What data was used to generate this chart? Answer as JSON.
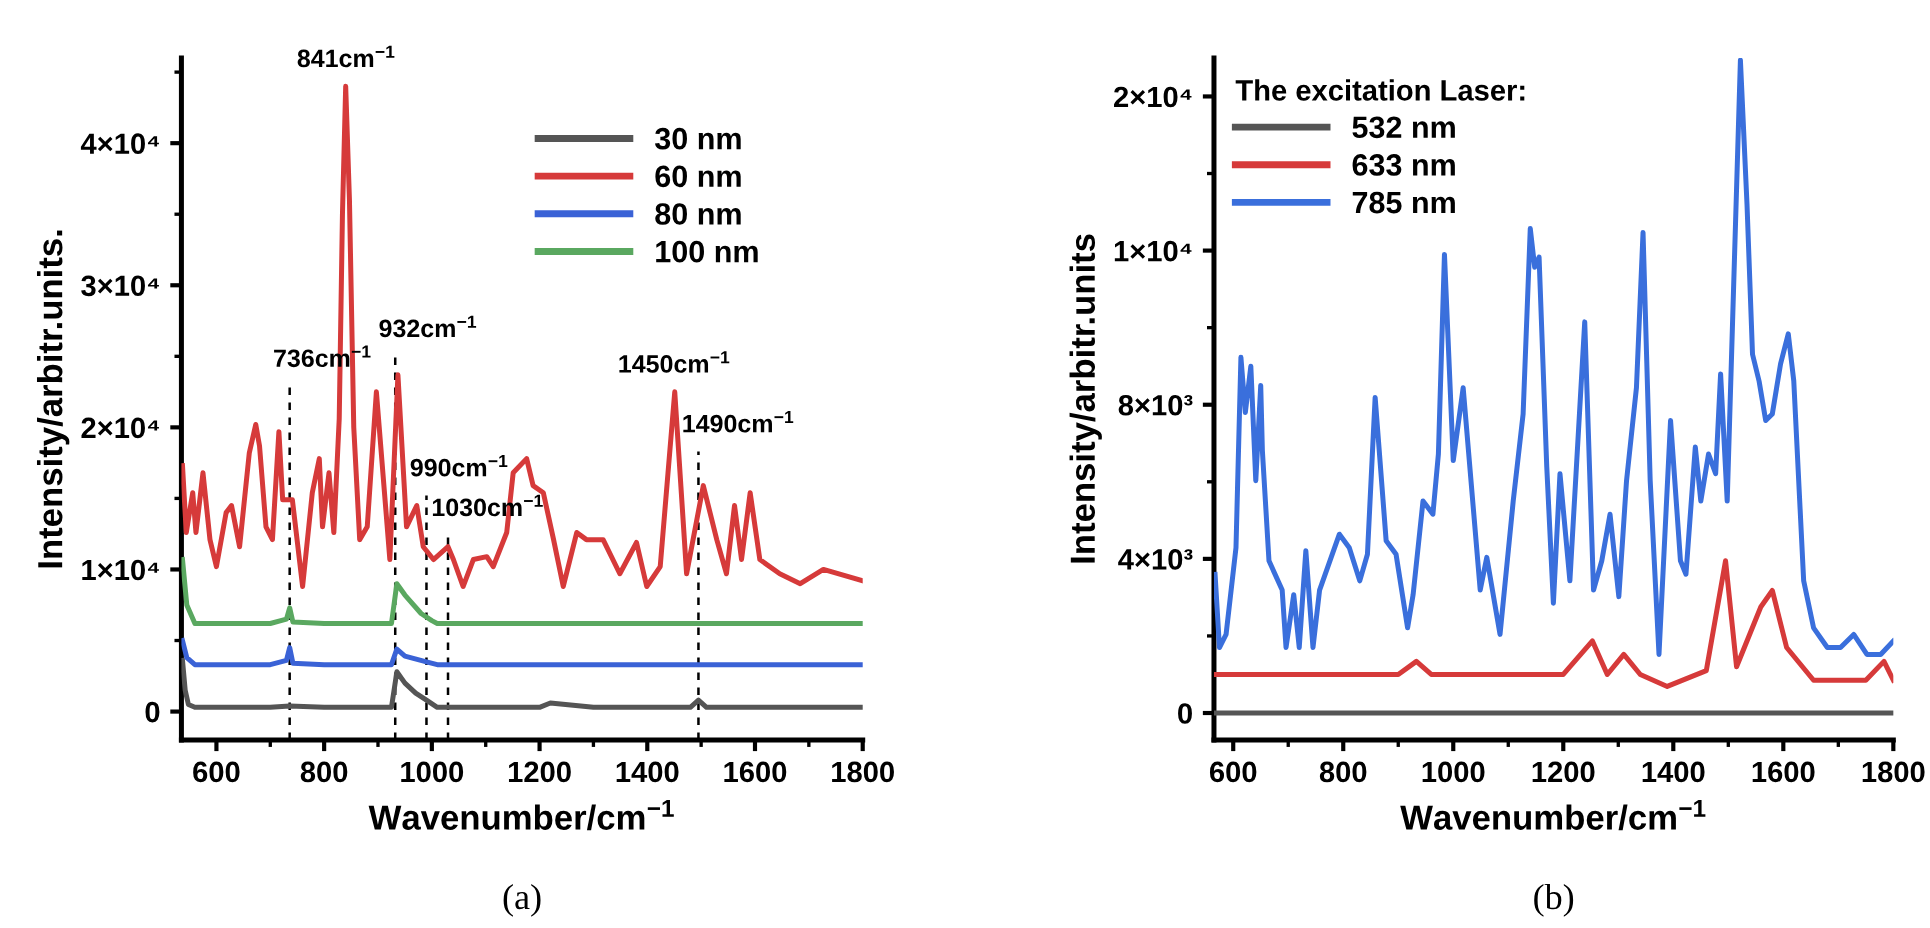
{
  "chart_data": [
    {
      "type": "line",
      "xlabel": "Wavenumber/cm$^{−1}$",
      "ylabel": "Intensity/arbitr.units.",
      "xlim": [
        535,
        1800
      ],
      "ylim": [
        -2000,
        46000
      ],
      "xticks": [
        600,
        800,
        1000,
        1200,
        1400,
        1600,
        1800
      ],
      "yticks": [
        0,
        {
          "value": 10000,
          "label": "1×10⁴"
        },
        {
          "value": 20000,
          "label": "2×10⁴"
        },
        {
          "value": 30000,
          "label": "3×10⁴"
        },
        {
          "value": 40000,
          "label": "4×10⁴"
        }
      ],
      "grid": false,
      "legend": "top right",
      "line_style": "solid",
      "marker": "none",
      "series": [
        {
          "name": "30 nm",
          "color": "#555555",
          "x": [
            537,
            542,
            548,
            560,
            600,
            700,
            736,
            800,
            900,
            925,
            935,
            950,
            970,
            990,
            1010,
            1100,
            1200,
            1220,
            1300,
            1400,
            1480,
            1495,
            1510,
            1600,
            1700,
            1800
          ],
          "values": [
            3600,
            1500,
            500,
            300,
            300,
            300,
            400,
            300,
            300,
            300,
            2800,
            2000,
            1300,
            800,
            300,
            300,
            300,
            600,
            300,
            300,
            300,
            800,
            300,
            300,
            300,
            300
          ]
        },
        {
          "name": "60 nm",
          "color": "#d63a3a",
          "x": [
            537,
            544,
            556,
            562,
            575,
            588,
            600,
            618,
            628,
            643,
            661,
            673,
            680,
            692,
            704,
            716,
            723,
            741,
            760,
            778,
            791,
            797,
            809,
            818,
            828,
            834,
            840,
            847,
            855,
            866,
            880,
            897,
            922,
            937,
            953,
            972,
            984,
            1003,
            1030,
            1040,
            1058,
            1077,
            1102,
            1114,
            1139,
            1151,
            1176,
            1188,
            1207,
            1226,
            1244,
            1269,
            1287,
            1318,
            1349,
            1380,
            1399,
            1424,
            1451,
            1473,
            1504,
            1529,
            1547,
            1562,
            1575,
            1591,
            1609,
            1646,
            1684,
            1727,
            1800
          ],
          "values": [
            17300,
            12600,
            15400,
            12600,
            16800,
            12100,
            10200,
            14000,
            14500,
            11600,
            18200,
            20200,
            18700,
            13000,
            12100,
            19700,
            14900,
            14900,
            8800,
            15400,
            17800,
            13000,
            16800,
            12600,
            20600,
            35000,
            44000,
            36000,
            20000,
            12100,
            13000,
            22500,
            10700,
            23700,
            13000,
            14500,
            11600,
            10700,
            11600,
            10700,
            8800,
            10700,
            10900,
            10200,
            12600,
            16800,
            17800,
            15900,
            15400,
            12100,
            8800,
            12600,
            12100,
            12100,
            9700,
            11900,
            8800,
            10200,
            22500,
            9700,
            15900,
            12100,
            9700,
            14500,
            10700,
            15400,
            10700,
            9700,
            9000,
            10000,
            9200
          ]
        },
        {
          "name": "80 nm",
          "color": "#3a62d6",
          "x": [
            537,
            545,
            560,
            600,
            700,
            730,
            736,
            742,
            800,
            900,
            925,
            935,
            950,
            990,
            1010,
            1100,
            1200,
            1300,
            1400,
            1500,
            1600,
            1700,
            1800
          ],
          "values": [
            5000,
            3800,
            3300,
            3300,
            3300,
            3600,
            4500,
            3400,
            3300,
            3300,
            3300,
            4400,
            3900,
            3500,
            3300,
            3300,
            3300,
            3300,
            3300,
            3300,
            3300,
            3300,
            3300
          ]
        },
        {
          "name": "100 nm",
          "color": "#5aa860",
          "x": [
            537,
            545,
            560,
            600,
            700,
            730,
            736,
            742,
            800,
            900,
            925,
            935,
            950,
            980,
            1000,
            1010,
            1100,
            1200,
            1300,
            1400,
            1500,
            1600,
            1700,
            1800
          ],
          "values": [
            10700,
            7500,
            6200,
            6200,
            6200,
            6500,
            7300,
            6300,
            6200,
            6200,
            6200,
            9000,
            8200,
            6900,
            6400,
            6200,
            6200,
            6200,
            6200,
            6200,
            6200,
            6200,
            6200,
            6200
          ]
        }
      ],
      "ref_lines": [
        {
          "axis": "x",
          "value": 736,
          "color": "#000000",
          "line_style": "dashed"
        },
        {
          "axis": "x",
          "value": 932,
          "color": "#000000",
          "line_style": "dashed"
        },
        {
          "axis": "x",
          "value": 990,
          "color": "#000000",
          "line_style": "dashed"
        },
        {
          "axis": "x",
          "value": 1030,
          "color": "#000000",
          "line_style": "dashed"
        },
        {
          "axis": "x",
          "value": 1495,
          "color": "#000000",
          "line_style": "dashed"
        }
      ],
      "annotations": [
        {
          "text": "841cm$^{−1}$",
          "x": 841,
          "y": 44000
        },
        {
          "text": "736cm$^{−1}$",
          "x": 736,
          "y": 22900
        },
        {
          "text": "932cm$^{−1}$",
          "x": 932,
          "y": 25000
        },
        {
          "text": "990cm$^{−1}$",
          "x": 990,
          "y": 15200
        },
        {
          "text": "1030cm$^{−1}$",
          "x": 1030,
          "y": 12400
        },
        {
          "text": "1450cm$^{−1}$",
          "x": 1450,
          "y": 22500
        },
        {
          "text": "1490cm$^{−1}$",
          "x": 1495,
          "y": 18300
        },
        "(a)"
      ]
    },
    {
      "type": "line",
      "xlabel": "Wavenumber/cm$^{−1}$",
      "ylabel": "Intensity/arbitr.units",
      "legend_title": "The excitation Laser:",
      "xlim": [
        565,
        1800
      ],
      "ylim": [
        -700,
        17000
      ],
      "xticks": [
        600,
        800,
        1000,
        1200,
        1400,
        1600,
        1800
      ],
      "yticks": [
        0,
        {
          "value": 4000,
          "label": "4×10³"
        },
        {
          "value": 8000,
          "label": "8×10³"
        },
        {
          "value": 12000,
          "label": "1×10⁴"
        },
        {
          "value": 16000,
          "label": "2×10⁴"
        }
      ],
      "grid": false,
      "legend": "top left",
      "line_style": "solid",
      "marker": "none",
      "series": [
        {
          "name": "532 nm",
          "color": "#555555",
          "x": [
            565,
            800,
            1000,
            1200,
            1400,
            1600,
            1800
          ],
          "values": [
            0,
            0,
            0,
            0,
            0,
            0,
            0
          ]
        },
        {
          "name": "633 nm",
          "color": "#d63a3a",
          "x": [
            567,
            700,
            900,
            933,
            960,
            1200,
            1253,
            1280,
            1310,
            1340,
            1389,
            1460,
            1495,
            1515,
            1559,
            1580,
            1606,
            1655,
            1750,
            1783,
            1800
          ],
          "values": [
            1000,
            1000,
            1000,
            1340,
            1000,
            1000,
            1870,
            1000,
            1520,
            1000,
            690,
            1100,
            3950,
            1200,
            2750,
            3180,
            1700,
            850,
            850,
            1340,
            850
          ]
        },
        {
          "name": "785 nm",
          "color": "#3a6fdc",
          "x": [
            567,
            575,
            587,
            605,
            614,
            622,
            632,
            641,
            650,
            653,
            665,
            689,
            696,
            710,
            720,
            732,
            745,
            757,
            793,
            811,
            830,
            844,
            858,
            878,
            896,
            917,
            927,
            945,
            963,
            973,
            984,
            1000,
            1018,
            1049,
            1061,
            1085,
            1109,
            1127,
            1140,
            1148,
            1156,
            1170,
            1182,
            1194,
            1212,
            1239,
            1255,
            1270,
            1285,
            1301,
            1315,
            1333,
            1345,
            1358,
            1374,
            1395,
            1413,
            1423,
            1440,
            1450,
            1464,
            1477,
            1486,
            1498,
            1522,
            1534,
            1544,
            1556,
            1568,
            1580,
            1595,
            1609,
            1619,
            1637,
            1655,
            1680,
            1704,
            1728,
            1752,
            1777,
            1800
          ],
          "values": [
            3600,
            1700,
            2040,
            4290,
            9230,
            7800,
            9000,
            6030,
            8500,
            6810,
            3950,
            3190,
            1700,
            3070,
            1700,
            4210,
            1700,
            3190,
            4640,
            4290,
            3430,
            4120,
            8190,
            4470,
            4120,
            2210,
            3070,
            5500,
            5160,
            6720,
            11900,
            6550,
            8440,
            3190,
            4040,
            2040,
            5500,
            7760,
            12570,
            11570,
            11830,
            6380,
            2850,
            6210,
            3430,
            10150,
            3190,
            3950,
            5160,
            3020,
            6030,
            8440,
            12470,
            6030,
            1520,
            7590,
            3950,
            3600,
            6900,
            5500,
            6720,
            6210,
            8800,
            5500,
            16940,
            13200,
            9310,
            8610,
            7590,
            7760,
            9060,
            9840,
            8620,
            3430,
            2210,
            1700,
            1700,
            2040,
            1520,
            1520,
            1870
          ]
        }
      ],
      "annotations": [
        "(b)"
      ]
    }
  ]
}
